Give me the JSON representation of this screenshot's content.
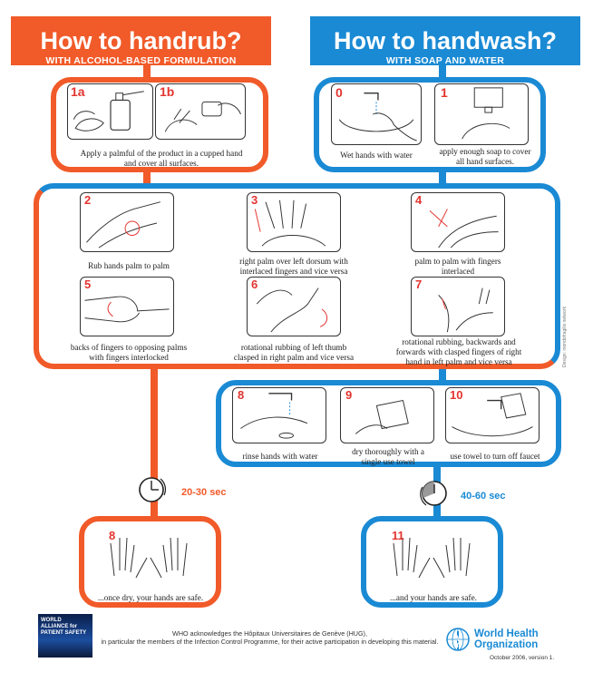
{
  "colors": {
    "orange": "#f15a29",
    "blue": "#1a8ad4",
    "red_number": "#e3342f"
  },
  "handrub": {
    "title": "How to handrub?",
    "subtitle": "WITH ALCOHOL-BASED FORMULATION"
  },
  "handwash": {
    "title": "How to handwash?",
    "subtitle": "WITH SOAP AND WATER"
  },
  "steps": {
    "s1a": {
      "num": "1a",
      "icon": "hands-cupped-dispenser-icon"
    },
    "s1b": {
      "num": "1b",
      "icon": "hands-pump-bottle-icon"
    },
    "s1_caption": "Apply a palmful of the product in a cupped hand and cover all surfaces.",
    "s0": {
      "num": "0",
      "caption": "Wet hands with water",
      "icon": "faucet-wet-hands-icon"
    },
    "s1": {
      "num": "1",
      "caption": "apply enough soap to cover all hand surfaces.",
      "icon": "soap-dispenser-icon"
    },
    "s2": {
      "num": "2",
      "caption": "Rub hands palm to palm",
      "icon": "palm-to-palm-icon"
    },
    "s3": {
      "num": "3",
      "caption": "right palm over left dorsum with interlaced fingers and vice versa",
      "icon": "palm-over-dorsum-icon"
    },
    "s4": {
      "num": "4",
      "caption": "palm to palm with fingers interlaced",
      "icon": "fingers-interlaced-icon"
    },
    "s5": {
      "num": "5",
      "caption": "backs of fingers to opposing palms with fingers interlocked",
      "icon": "fingers-interlocked-icon"
    },
    "s6": {
      "num": "6",
      "caption": "rotational rubbing of left thumb clasped in right palm and vice versa",
      "icon": "thumb-rubbing-icon"
    },
    "s7": {
      "num": "7",
      "caption": "rotational rubbing, backwards and forwards with clasped fingers of right hand in left palm and vice versa",
      "icon": "fingertips-rubbing-icon"
    },
    "s8w": {
      "num": "8",
      "caption": "rinse hands with water",
      "icon": "rinse-faucet-icon"
    },
    "s9": {
      "num": "9",
      "caption": "dry thoroughly with a single use towel",
      "icon": "towel-dry-icon"
    },
    "s10": {
      "num": "10",
      "caption": "use towel to turn off faucet",
      "icon": "towel-faucet-icon"
    },
    "s8r": {
      "num": "8",
      "caption": "...once dry, your hands are safe.",
      "icon": "safe-hands-icon"
    },
    "s11": {
      "num": "11",
      "caption": "...and your hands are safe.",
      "icon": "safe-hands-icon"
    }
  },
  "timers": {
    "rub": "20-30 sec",
    "wash": "40-60 sec"
  },
  "footer": {
    "alliance_logo_text": "WORLD ALLIANCE for PATIENT SAFETY",
    "ack_line1": "WHO acknowledges the Hôpitaux Universitaires de Genève (HUG),",
    "ack_line2": "in particular the members of the Infection Control Programme, for their active participation in developing this material.",
    "who_line1": "World Health",
    "who_line2": "Organization",
    "version": "October 2006, version 1.",
    "credit": "Design: mondofragilis network"
  }
}
